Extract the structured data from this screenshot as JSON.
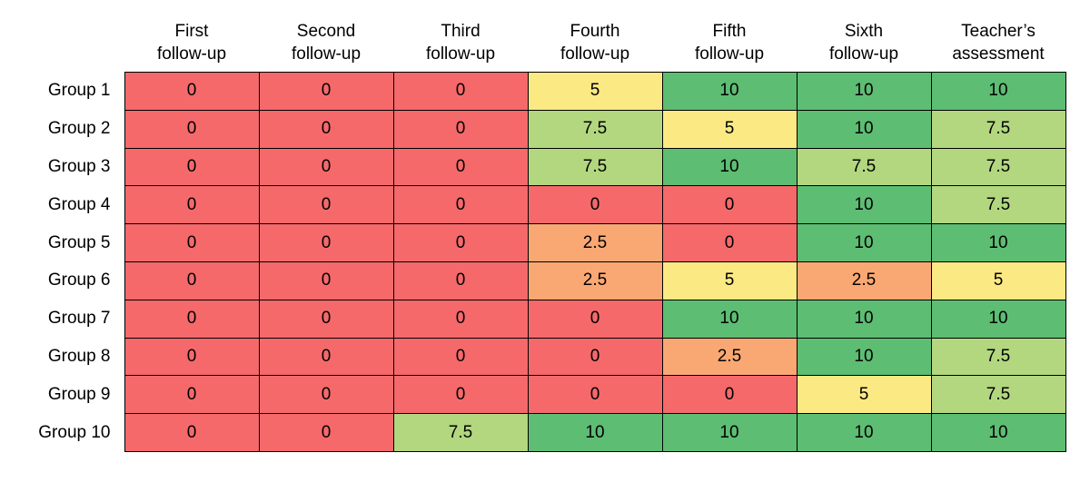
{
  "chart_data": {
    "type": "heatmap",
    "title": "",
    "columns": [
      "First follow-up",
      "Second follow-up",
      "Third follow-up",
      "Fourth follow-up",
      "Fifth follow-up",
      "Sixth follow-up",
      "Teacher’s assessment"
    ],
    "column_lines": [
      [
        "First",
        "follow-up"
      ],
      [
        "Second",
        "follow-up"
      ],
      [
        "Third",
        "follow-up"
      ],
      [
        "Fourth",
        "follow-up"
      ],
      [
        "Fifth",
        "follow-up"
      ],
      [
        "Sixth",
        "follow-up"
      ],
      [
        "Teacher’s",
        "assessment"
      ]
    ],
    "row_labels": [
      "Group 1",
      "Group 2",
      "Group 3",
      "Group 4",
      "Group 5",
      "Group 6",
      "Group 7",
      "Group 8",
      "Group 9",
      "Group 10"
    ],
    "values": [
      [
        0,
        0,
        0,
        5,
        10,
        10,
        10
      ],
      [
        0,
        0,
        0,
        7.5,
        5,
        10,
        7.5
      ],
      [
        0,
        0,
        0,
        7.5,
        10,
        7.5,
        7.5
      ],
      [
        0,
        0,
        0,
        0,
        0,
        10,
        7.5
      ],
      [
        0,
        0,
        0,
        2.5,
        0,
        10,
        10
      ],
      [
        0,
        0,
        0,
        2.5,
        5,
        2.5,
        5
      ],
      [
        0,
        0,
        0,
        0,
        10,
        10,
        10
      ],
      [
        0,
        0,
        0,
        0,
        2.5,
        10,
        7.5
      ],
      [
        0,
        0,
        0,
        0,
        0,
        5,
        7.5
      ],
      [
        0,
        0,
        7.5,
        10,
        10,
        10,
        10
      ]
    ],
    "value_range": [
      0,
      10
    ],
    "color_scale": {
      "0": "#F5696B",
      "2.5": "#FAA873",
      "5": "#FBE983",
      "7.5": "#B2D77F",
      "10": "#5DBD73"
    },
    "grid": true,
    "border_color": "#000000",
    "background": "#FFFFFF",
    "legend_position": "none"
  }
}
